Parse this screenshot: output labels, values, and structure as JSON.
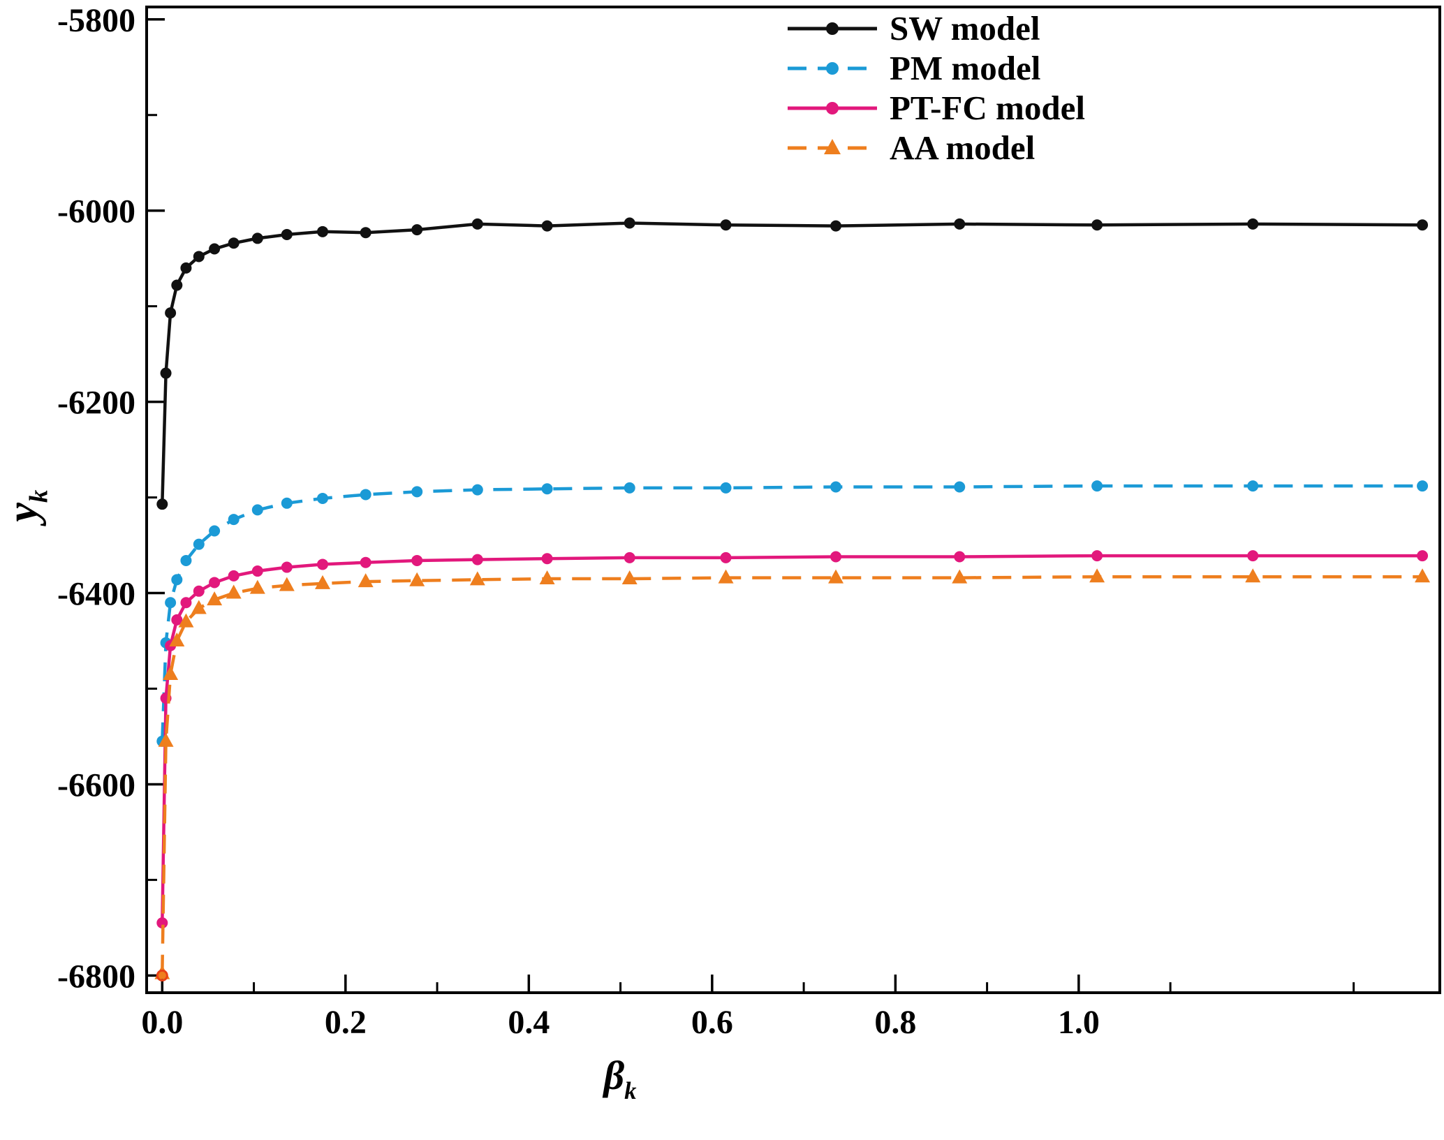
{
  "figure": {
    "background": "#ffffff"
  },
  "chart_data": {
    "type": "line",
    "title": "",
    "xlabel": "β_k",
    "ylabel": "y_k",
    "xlabel_main": "β",
    "xlabel_sub": "k",
    "ylabel_main": "y",
    "ylabel_sub": "k",
    "grid": false,
    "legend_position": "top-right-inside",
    "xlim": [
      -0.017,
      1.394
    ],
    "ylim": [
      -6818,
      -5787
    ],
    "x_ticks": [
      0.0,
      0.2,
      0.4,
      0.6,
      0.8,
      1.0
    ],
    "x_tick_labels": [
      "0.0",
      "0.2",
      "0.4",
      "0.6",
      "0.8",
      "1.0"
    ],
    "x_minor_ticks": [
      0.1,
      0.3,
      0.5,
      0.7,
      0.9,
      1.1,
      1.3
    ],
    "y_ticks": [
      -5800,
      -6000,
      -6200,
      -6400,
      -6600,
      -6800
    ],
    "y_tick_labels": [
      "-5800",
      "-6000",
      "-6200",
      "-6400",
      "-6600",
      "-6800"
    ],
    "y_minor_ticks": [
      -5900,
      -6100,
      -6300,
      -6500,
      -6700
    ],
    "x": [
      0,
      0.004,
      0.009,
      0.016,
      0.026,
      0.04,
      0.057,
      0.078,
      0.104,
      0.136,
      0.175,
      0.222,
      0.278,
      0.344,
      0.42,
      0.51,
      0.615,
      0.735,
      0.87,
      1.02,
      1.19,
      1.375
    ],
    "series": [
      {
        "id": "sw-model",
        "name": "SW model",
        "color": "#111111",
        "line": "solid",
        "marker": "circle",
        "values": [
          -6307,
          -6170,
          -6107,
          -6078,
          -6060,
          -6048,
          -6040,
          -6034,
          -6029,
          -6025,
          -6022,
          -6023,
          -6020,
          -6014,
          -6016,
          -6013,
          -6015,
          -6016,
          -6014,
          -6015,
          -6014,
          -6015
        ]
      },
      {
        "id": "pm-model",
        "name": "PM model",
        "color": "#1b9ad6",
        "line": "dashed",
        "marker": "circle",
        "values": [
          -6555,
          -6452,
          -6410,
          -6386,
          -6366,
          -6349,
          -6335,
          -6323,
          -6313,
          -6306,
          -6301,
          -6297,
          -6294,
          -6292,
          -6291,
          -6290,
          -6290,
          -6289,
          -6289,
          -6288,
          -6288,
          -6288
        ]
      },
      {
        "id": "pt-fc-model",
        "name": "PT-FC model",
        "color": "#e2187c",
        "line": "solid",
        "marker": "circle",
        "values": [
          -6745,
          -6510,
          -6455,
          -6428,
          -6410,
          -6398,
          -6389,
          -6382,
          -6377,
          -6373,
          -6370,
          -6368,
          -6366,
          -6365,
          -6364,
          -6363,
          -6363,
          -6362,
          -6362,
          -6361,
          -6361,
          -6361
        ]
      },
      {
        "id": "aa-model",
        "name": "AA model",
        "color": "#ee7e1e",
        "line": "dashed",
        "marker": "triangle",
        "values": [
          -6798,
          -6555,
          -6485,
          -6450,
          -6430,
          -6416,
          -6407,
          -6400,
          -6395,
          -6392,
          -6390,
          -6388,
          -6387,
          -6386,
          -6385,
          -6385,
          -6384,
          -6384,
          -6384,
          -6383,
          -6383,
          -6383
        ]
      }
    ],
    "start_marker": {
      "x": 0,
      "y": -6800,
      "shape": "open-circle",
      "color": "#e84118"
    }
  }
}
